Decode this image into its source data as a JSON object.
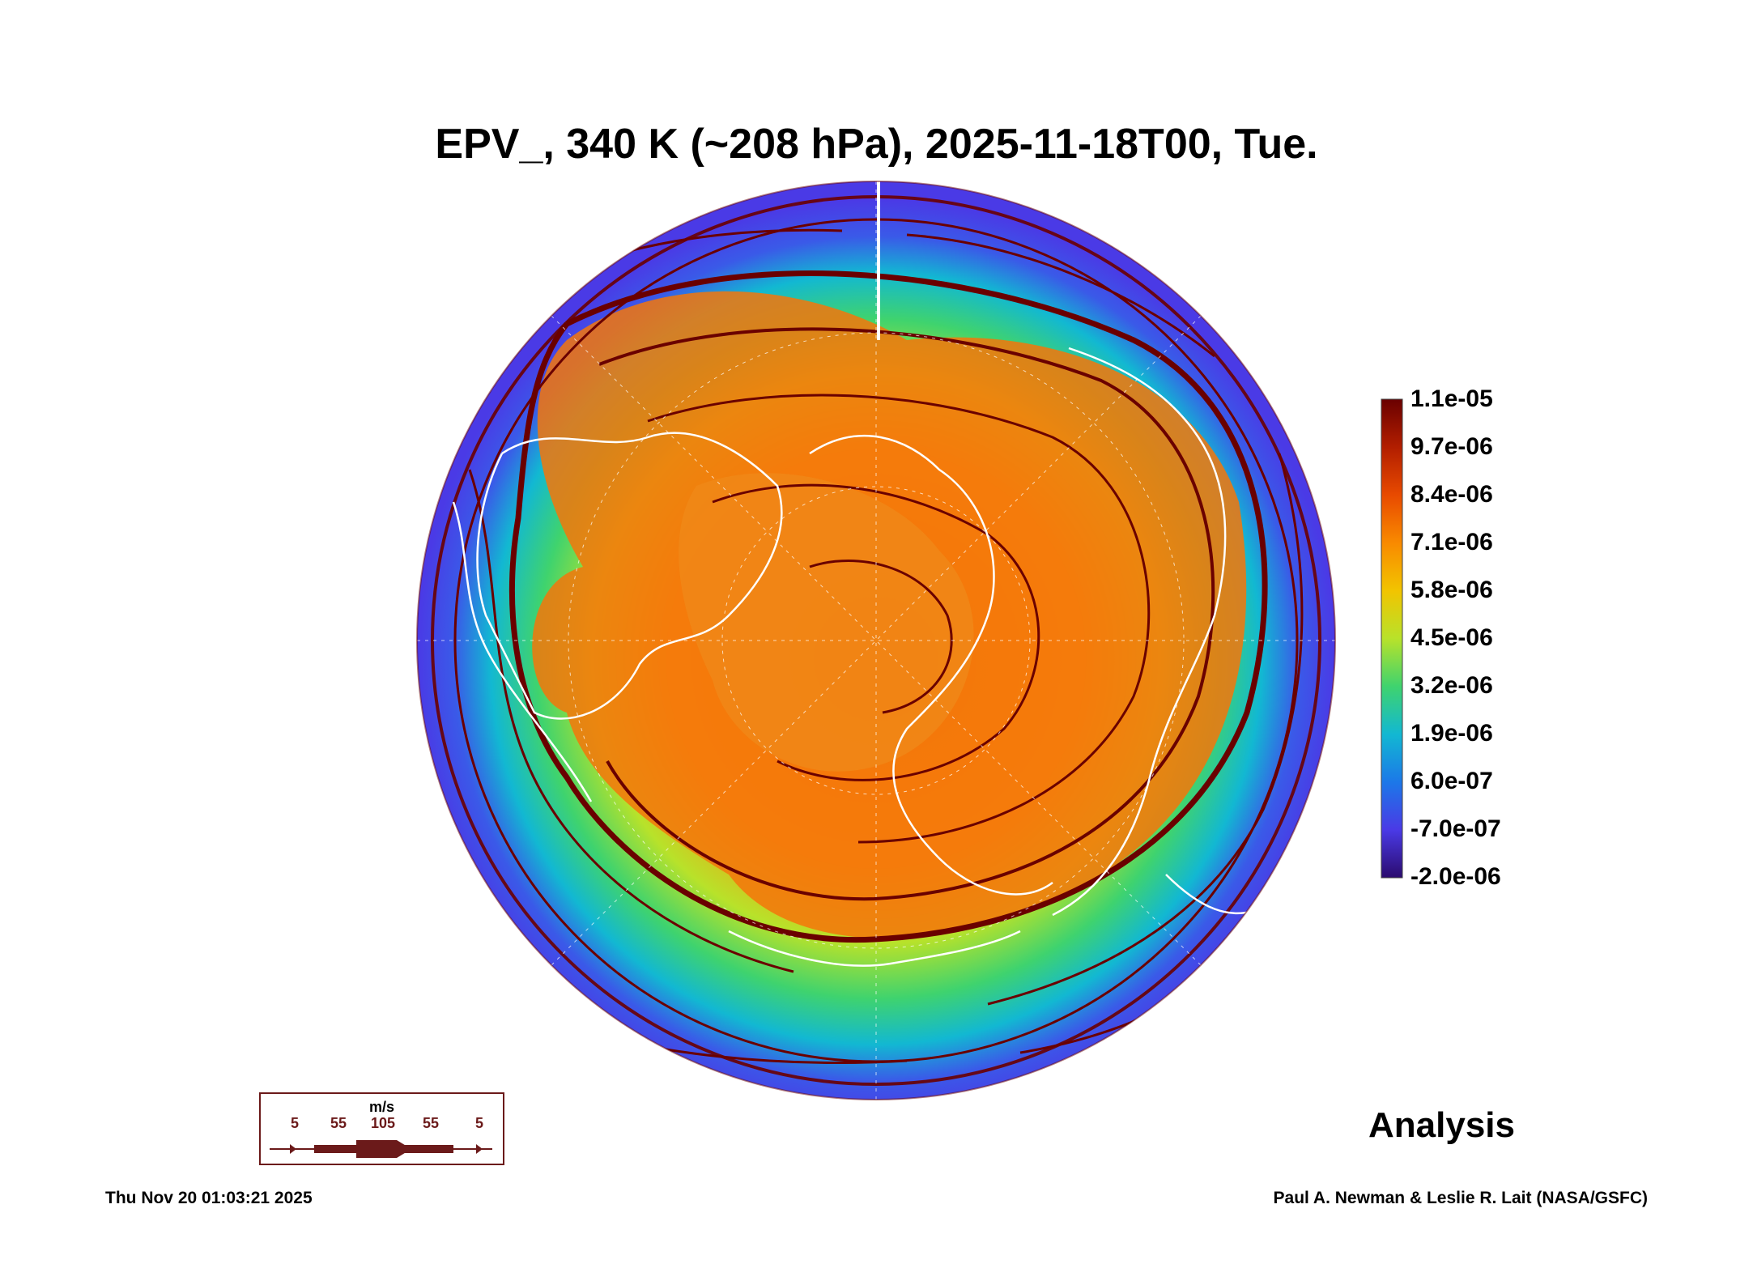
{
  "title": "EPV_, 340 K (~208 hPa), 2025-11-18T00, Tue.",
  "colorbar": {
    "labels": [
      "1.1e-05",
      "9.7e-06",
      "8.4e-06",
      "7.1e-06",
      "5.8e-06",
      "4.5e-06",
      "3.2e-06",
      "1.9e-06",
      "6.0e-07",
      "-7.0e-07",
      "-2.0e-06"
    ],
    "colors": [
      "#6a0000",
      "#b21e00",
      "#e84a00",
      "#f98a00",
      "#f2c400",
      "#b8e22a",
      "#3fd36e",
      "#12b8d2",
      "#1c78e8",
      "#4a3ae6",
      "#2b0b6e"
    ]
  },
  "wind_legend": {
    "unit": "m/s",
    "speeds": [
      "5",
      "55",
      "105",
      "55",
      "5"
    ]
  },
  "label_analysis": "Analysis",
  "footer_left": "Thu Nov 20 01:03:21 2025",
  "footer_right": "Paul A. Newman & Leslie R. Lait (NASA/GSFC)"
}
